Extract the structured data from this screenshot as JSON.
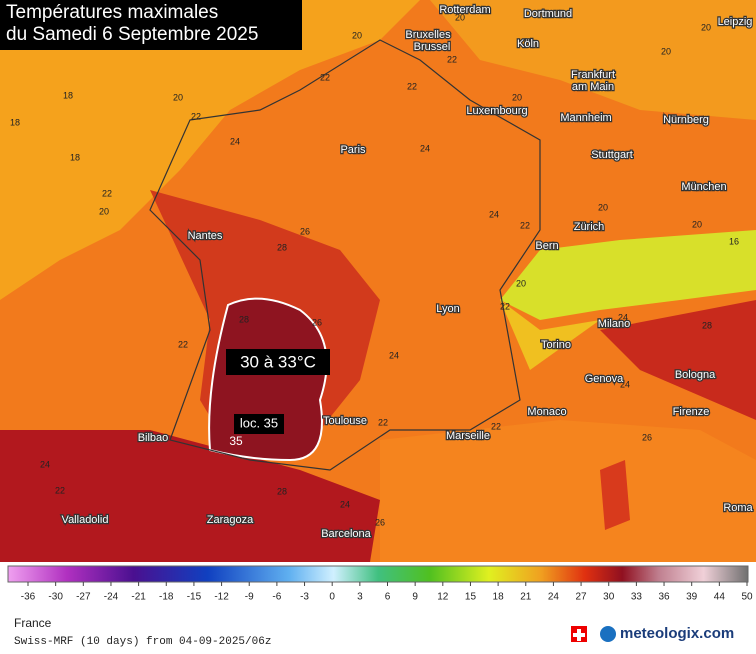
{
  "header": {
    "title_line1": "Températures maximales",
    "title_line2": "du Samedi 6 Septembre 2025"
  },
  "cities": [
    "Rotterdam",
    "Dortmund",
    "Leipzig",
    "Bruxelles",
    "Brussel",
    "Köln",
    "Frankfurt",
    "am Main",
    "Luxembourg",
    "Mannheim",
    "Nürnberg",
    "Paris",
    "Stuttgart",
    "München",
    "Nantes",
    "Zürich",
    "Bern",
    "Lyon",
    "Milano",
    "Torino",
    "Bologna",
    "Genova",
    "Toulouse",
    "Monaco",
    "Marseille",
    "Firenze",
    "Bilbao",
    "Valladolid",
    "Zaragoza",
    "Barcelona",
    "Roma"
  ],
  "temperatures": [
    20,
    18,
    20,
    18,
    22,
    24,
    18,
    22,
    20,
    22,
    22,
    20,
    22,
    20,
    20,
    20,
    24,
    24,
    22,
    20,
    20,
    28,
    26,
    28,
    22,
    26,
    24,
    22,
    22,
    20,
    16,
    24,
    24,
    26,
    28,
    22,
    24,
    26,
    24,
    22,
    28
  ],
  "annotations": {
    "range": "30 à 33°C",
    "local": "loc. 35",
    "local_value": "35"
  },
  "legend": {
    "ticks": [
      -36,
      -30,
      -27,
      -24,
      -21,
      -18,
      -15,
      -12,
      -9,
      -6,
      -3,
      0,
      3,
      6,
      9,
      12,
      15,
      18,
      21,
      24,
      27,
      30,
      33,
      36,
      39,
      44,
      50
    ]
  },
  "footer": {
    "region": "France",
    "model": "Swiss-MRF (10 days) from 04-09-2025/06z",
    "brand": "meteologix.com"
  }
}
